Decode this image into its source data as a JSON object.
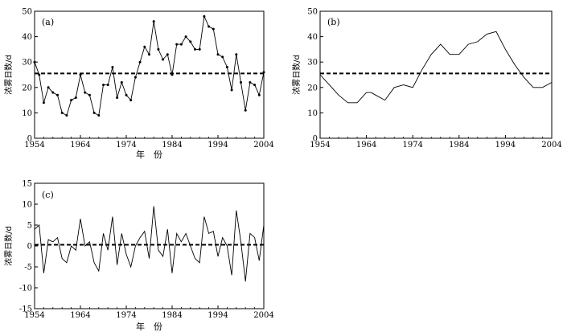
{
  "chart_data": [
    {
      "type": "line",
      "panel_label": "(a)",
      "xlabel": "年　份",
      "ylabel": "浓雾日数/d",
      "xlim": [
        1954,
        2004
      ],
      "ylim": [
        0,
        50
      ],
      "xticks": [
        1954,
        1964,
        1974,
        1984,
        1994,
        2004
      ],
      "yticks": [
        0,
        10,
        20,
        30,
        40,
        50
      ],
      "markers": true,
      "reference_line": 25.5,
      "x": [
        1954,
        1955,
        1956,
        1957,
        1958,
        1959,
        1960,
        1961,
        1962,
        1963,
        1964,
        1965,
        1966,
        1967,
        1968,
        1969,
        1970,
        1971,
        1972,
        1973,
        1974,
        1975,
        1976,
        1977,
        1978,
        1979,
        1980,
        1981,
        1982,
        1983,
        1984,
        1985,
        1986,
        1987,
        1988,
        1989,
        1990,
        1991,
        1992,
        1993,
        1994,
        1995,
        1996,
        1997,
        1998,
        1999,
        2000,
        2001,
        2002,
        2003,
        2004
      ],
      "values": [
        30,
        25,
        14,
        20,
        18,
        17,
        10,
        9,
        15,
        16,
        25,
        18,
        17,
        10,
        9,
        21,
        21,
        28,
        16,
        22,
        17,
        15,
        24,
        30,
        36,
        33,
        46,
        35,
        31,
        33,
        25,
        37,
        37,
        40,
        38,
        35,
        35,
        48,
        44,
        43,
        33,
        32,
        28,
        19,
        33,
        22,
        11,
        22,
        21,
        17,
        26
      ]
    },
    {
      "type": "line",
      "panel_label": "(b)",
      "xlabel": "",
      "ylabel": "浓雾日数/d",
      "xlim": [
        1954,
        2004
      ],
      "ylim": [
        0,
        50
      ],
      "xticks": [
        1954,
        1964,
        1974,
        1984,
        1994,
        2004
      ],
      "yticks": [
        0,
        10,
        20,
        30,
        40,
        50
      ],
      "markers": false,
      "reference_line": 25.5,
      "x": [
        1954,
        1956,
        1958,
        1960,
        1962,
        1964,
        1965,
        1966,
        1968,
        1970,
        1972,
        1974,
        1976,
        1978,
        1980,
        1982,
        1984,
        1986,
        1988,
        1990,
        1992,
        1994,
        1996,
        1998,
        2000,
        2002,
        2004
      ],
      "values": [
        25,
        21,
        17,
        14,
        14,
        18,
        18,
        17,
        15,
        20,
        21,
        20,
        27,
        33,
        37,
        33,
        33,
        37,
        38,
        41,
        42,
        35,
        29,
        24,
        20,
        20,
        22
      ]
    },
    {
      "type": "line",
      "panel_label": "(c)",
      "xlabel": "年　份",
      "ylabel": "浓雾日数/d",
      "xlim": [
        1954,
        2004
      ],
      "ylim": [
        -15,
        15
      ],
      "xticks": [
        1954,
        1964,
        1974,
        1984,
        1994,
        2004
      ],
      "yticks": [
        -15,
        -10,
        -5,
        0,
        5,
        10,
        15
      ],
      "markers": false,
      "reference_line": 0.3,
      "x": [
        1954,
        1955,
        1956,
        1957,
        1958,
        1959,
        1960,
        1961,
        1962,
        1963,
        1964,
        1965,
        1966,
        1967,
        1968,
        1969,
        1970,
        1971,
        1972,
        1973,
        1974,
        1975,
        1976,
        1977,
        1978,
        1979,
        1980,
        1981,
        1982,
        1983,
        1984,
        1985,
        1986,
        1987,
        1988,
        1989,
        1990,
        1991,
        1992,
        1993,
        1994,
        1995,
        1996,
        1997,
        1998,
        1999,
        2000,
        2001,
        2002,
        2003,
        2004
      ],
      "values": [
        4,
        5,
        -6.5,
        1.5,
        1,
        2,
        -3,
        -4,
        0,
        -1,
        6.5,
        0,
        1,
        -4,
        -6,
        3,
        -1,
        7,
        -4.5,
        3,
        -2,
        -5,
        0,
        2,
        3.5,
        -3,
        9.5,
        -1,
        -2.5,
        4,
        -6.5,
        3,
        1,
        3,
        0,
        -3,
        -4,
        7,
        3,
        3.5,
        -2.5,
        2,
        0,
        -7,
        8.5,
        1,
        -8.5,
        3,
        2,
        -3.5,
        5
      ]
    }
  ]
}
